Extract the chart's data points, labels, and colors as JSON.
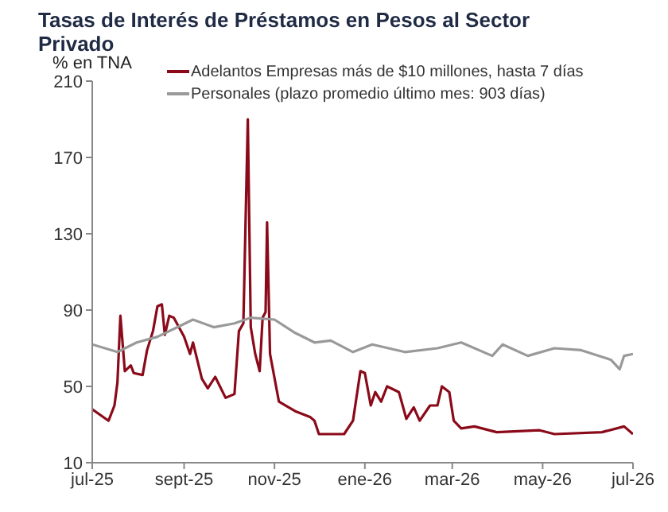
{
  "chart_data": {
    "type": "line",
    "title": "Tasas de Interés de Préstamos en Pesos al Sector Privado",
    "ylabel": "% en TNA",
    "series": [
      {
        "name": "Adelantos Empresas más de $10 millones, hasta 7 días",
        "color": "#8b0a1a",
        "x": [
          "2025-07-01",
          "2025-07-12",
          "2025-07-16",
          "2025-07-18",
          "2025-07-20",
          "2025-07-23",
          "2025-07-27",
          "2025-07-29",
          "2025-08-04",
          "2025-08-07",
          "2025-08-11",
          "2025-08-14",
          "2025-08-17",
          "2025-08-19",
          "2025-08-22",
          "2025-08-25",
          "2025-09-01",
          "2025-09-05",
          "2025-09-07",
          "2025-09-13",
          "2025-09-17",
          "2025-09-22",
          "2025-09-29",
          "2025-10-05",
          "2025-10-08",
          "2025-10-11",
          "2025-10-14",
          "2025-10-16",
          "2025-10-19",
          "2025-10-22",
          "2025-10-24",
          "2025-10-26",
          "2025-10-27",
          "2025-10-29",
          "2025-11-04",
          "2025-11-15",
          "2025-11-25",
          "2025-11-28",
          "2025-12-01",
          "2025-12-18",
          "2025-12-24",
          "2025-12-29",
          "2026-01-01",
          "2026-01-05",
          "2026-01-08",
          "2026-01-12",
          "2026-01-16",
          "2026-01-24",
          "2026-01-29",
          "2026-02-03",
          "2026-02-07",
          "2026-02-14",
          "2026-02-19",
          "2026-02-22",
          "2026-02-27",
          "2026-03-02",
          "2026-03-07",
          "2026-03-16",
          "2026-03-31",
          "2026-04-29",
          "2026-05-09",
          "2026-06-10",
          "2026-06-25",
          "2026-07-01"
        ],
        "values": [
          38,
          32,
          40,
          52,
          87,
          58,
          61,
          57,
          56,
          69,
          79,
          92,
          93,
          77,
          87,
          86,
          76,
          67,
          73,
          54,
          49,
          55,
          44,
          46,
          79,
          83,
          190,
          81,
          67,
          58,
          86,
          89,
          136,
          67,
          42,
          37,
          34,
          32,
          25,
          25,
          32,
          58,
          57,
          40,
          47,
          42,
          50,
          47,
          33,
          39,
          32,
          40,
          40,
          50,
          47,
          32,
          28,
          29,
          26,
          27,
          25,
          26,
          29,
          25
        ]
      },
      {
        "name": "Personales (plazo promedio último mes: 903 días)",
        "color": "#999999",
        "x": [
          "2025-07-01",
          "2025-07-18",
          "2025-07-31",
          "2025-08-14",
          "2025-08-30",
          "2025-09-07",
          "2025-09-21",
          "2025-10-05",
          "2025-10-16",
          "2025-11-01",
          "2025-11-15",
          "2025-11-28",
          "2025-12-09",
          "2025-12-24",
          "2026-01-06",
          "2026-01-28",
          "2026-02-19",
          "2026-03-07",
          "2026-03-28",
          "2026-04-04",
          "2026-04-21",
          "2026-05-09",
          "2026-05-27",
          "2026-06-16",
          "2026-06-22",
          "2026-06-25",
          "2026-07-01"
        ],
        "values": [
          72,
          68,
          73,
          76,
          82,
          85,
          81,
          83,
          86,
          85,
          78,
          73,
          74,
          68,
          72,
          68,
          70,
          73,
          66,
          72,
          66,
          70,
          69,
          64,
          59,
          66,
          67
        ]
      }
    ],
    "xlim": [
      "2025-07-01",
      "2026-07-01"
    ],
    "xticks": [
      {
        "value": "2025-07-01",
        "label": "jul-25"
      },
      {
        "value": "2025-09-01",
        "label": "sept-25"
      },
      {
        "value": "2025-11-01",
        "label": "nov-25"
      },
      {
        "value": "2026-01-01",
        "label": "ene-26"
      },
      {
        "value": "2026-03-01",
        "label": "mar-26"
      },
      {
        "value": "2026-05-01",
        "label": "may-26"
      },
      {
        "value": "2026-07-01",
        "label": "jul-26"
      }
    ],
    "ylim": [
      10,
      210
    ],
    "yticks": [
      10,
      50,
      90,
      130,
      170,
      210
    ],
    "grid": false,
    "legend": "top",
    "marker": "none",
    "line_style": "solid"
  }
}
